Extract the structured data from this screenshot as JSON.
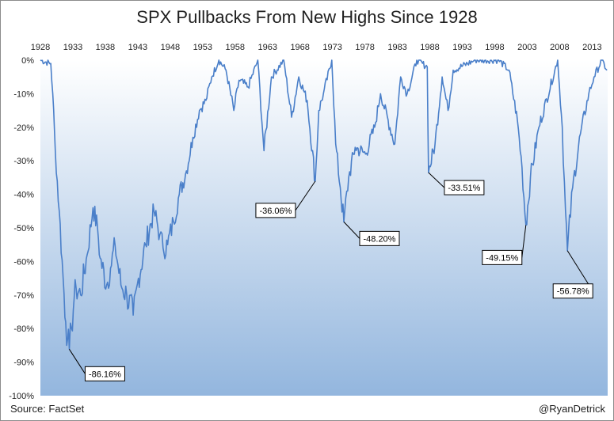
{
  "chart_data": {
    "type": "line",
    "title": "SPX Pullbacks From New Highs Since 1928",
    "x_tick_labels": [
      "1928",
      "1933",
      "1938",
      "1943",
      "1948",
      "1953",
      "1958",
      "1963",
      "1968",
      "1973",
      "1978",
      "1983",
      "1988",
      "1993",
      "1998",
      "2003",
      "2008",
      "2013"
    ],
    "y_tick_labels": [
      "0%",
      "-10%",
      "-20%",
      "-30%",
      "-40%",
      "-50%",
      "-60%",
      "-70%",
      "-80%",
      "-90%",
      "-100%"
    ],
    "xlim": [
      1928,
      2015.4
    ],
    "ylim": [
      -100,
      0
    ],
    "grid": false,
    "legend": "none",
    "line_color": "#4a7fc9",
    "series": [
      {
        "x": [
          1928,
          1929.6,
          1929.9,
          1930.3,
          1930.9,
          1931.5,
          1931.9,
          1932.2,
          1932.45,
          1932.8,
          1933.2,
          1933.5,
          1934.2,
          1935.2,
          1936.1,
          1936.8,
          1937.2,
          1938.2,
          1938.8,
          1939.5,
          1940.4,
          1941.3,
          1942.3,
          1943.1,
          1944.2,
          1945.5,
          1946.4,
          1946.9,
          1947.6,
          1948.5,
          1949.4,
          1950.5,
          1951.5,
          1952.5,
          1953.5,
          1954.4,
          1955.5,
          1956.6,
          1957.8,
          1958.6,
          1960,
          1961.5,
          1962.45,
          1963.6,
          1965.5,
          1966.7,
          1967.8,
          1969.1,
          1970.35,
          1970.9,
          1971.6,
          1972.9,
          1973.5,
          1974.2,
          1974.75,
          1975.5,
          1976.5,
          1978.1,
          1979.5,
          1980.4,
          1982.6,
          1983.5,
          1984.5,
          1986,
          1987.6,
          1987.8,
          1988.8,
          1989.9,
          1990.8,
          1991.6,
          1995,
          1998.6,
          2000.2,
          2001.5,
          2002.2,
          2002.8,
          2003.5,
          2004.8,
          2007.7,
          2008.4,
          2008.9,
          2009.2,
          2010,
          2011.2,
          2012.5,
          2013.3,
          2014.5,
          2015.3
        ],
        "y": [
          0,
          -1,
          -10,
          -27,
          -45,
          -65,
          -78,
          -83,
          -86.16,
          -80,
          -71,
          -68,
          -70,
          -58,
          -44,
          -50,
          -59,
          -67,
          -62,
          -55,
          -67,
          -70,
          -76,
          -65,
          -55,
          -45,
          -52,
          -56,
          -55,
          -48,
          -40,
          -33,
          -23,
          -15,
          -12,
          -5,
          0,
          -3,
          -15,
          -6,
          -8,
          0,
          -27,
          -5,
          0,
          -17,
          -5,
          -12,
          -36.06,
          -15,
          -10,
          0,
          -25,
          -38,
          -48.2,
          -35,
          -26,
          -28,
          -20,
          -10,
          -25,
          -5,
          -10,
          0,
          -2,
          -33.51,
          -25,
          -5,
          -15,
          -3,
          0,
          0,
          -3,
          -18,
          -32,
          -49.15,
          -35,
          -20,
          0,
          -20,
          -45,
          -56.78,
          -38,
          -22,
          -10,
          -5,
          0,
          -3
        ]
      }
    ],
    "annotations": [
      {
        "text": "-86.16%",
        "x": 1932.45,
        "y": -86.16
      },
      {
        "text": "-36.06%",
        "x": 1970.35,
        "y": -36.06
      },
      {
        "text": "-48.20%",
        "x": 1974.75,
        "y": -48.2
      },
      {
        "text": "-33.51%",
        "x": 1987.8,
        "y": -33.51
      },
      {
        "text": "-49.15%",
        "x": 2002.8,
        "y": -49.15
      },
      {
        "text": "-56.78%",
        "x": 2009.2,
        "y": -56.78
      }
    ]
  },
  "footer": {
    "source": "Source: FactSet",
    "handle": "@RyanDetrick"
  }
}
